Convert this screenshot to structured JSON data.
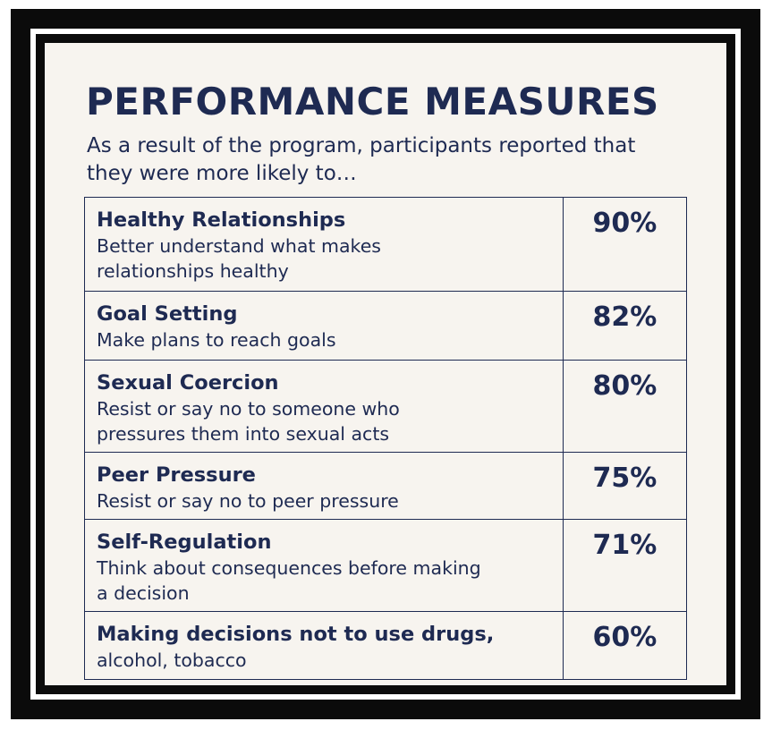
{
  "title": "PERFORMANCE MEASURES",
  "subtitle": "As a result of the program, participants reported that they were more likely to…",
  "measures": [
    {
      "heading": "Healthy Relationships",
      "description": "Better understand what makes relationships healthy",
      "percent": "90%"
    },
    {
      "heading": "Goal Setting",
      "description": "Make plans to reach goals",
      "percent": "82%"
    },
    {
      "heading": "Sexual Coercion",
      "description": "Resist or say no to someone who pressures them into sexual acts",
      "percent": "80%"
    },
    {
      "heading": "Peer Pressure",
      "description": "Resist or say no to peer pressure",
      "percent": "75%"
    },
    {
      "heading": "Self-Regulation",
      "description": "Think about consequences before making a decision",
      "percent": "71%"
    },
    {
      "heading": "Making decisions not to use drugs,",
      "description": "alcohol, tobacco",
      "percent": "60%"
    }
  ],
  "colors": {
    "text": "#1e2a52",
    "background": "#f7f4ef",
    "frame": "#0b0b0b"
  }
}
